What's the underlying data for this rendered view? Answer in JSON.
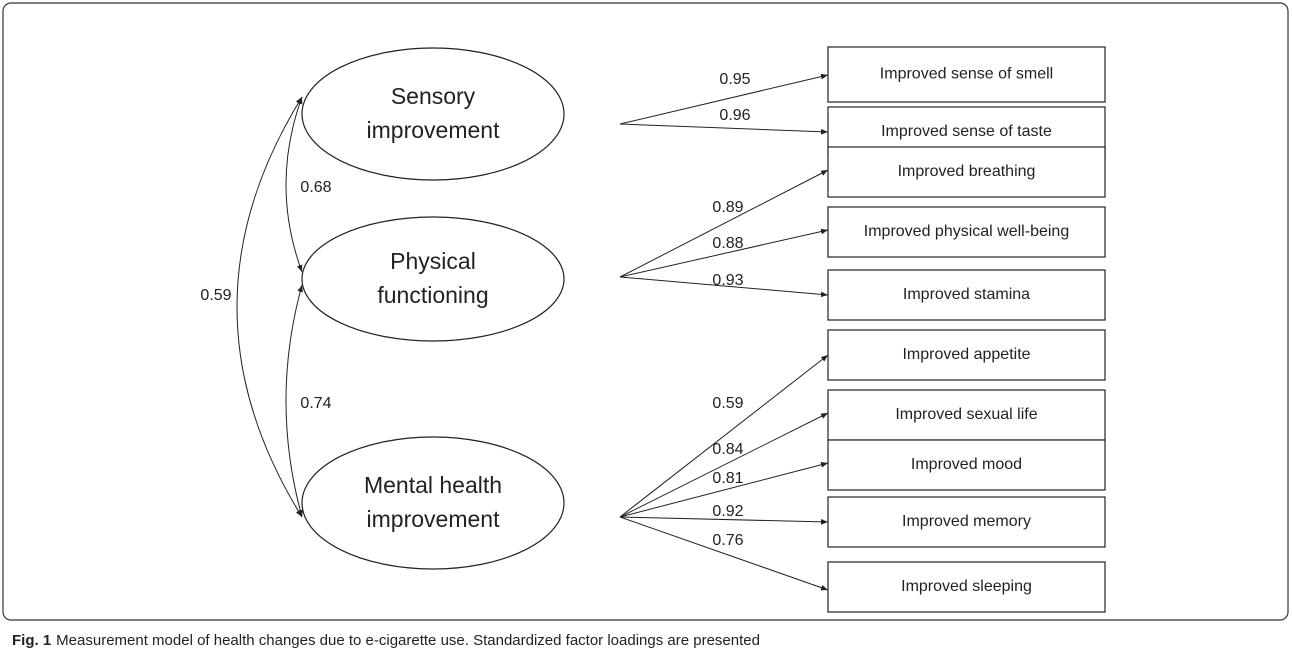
{
  "factors": [
    {
      "label": [
        "Sensory",
        "improvement"
      ]
    },
    {
      "label": [
        "Physical",
        "functioning"
      ]
    },
    {
      "label": [
        "Mental health",
        "improvement"
      ]
    }
  ],
  "indicators": [
    {
      "label": "Improved sense of smell",
      "loading": "0.95"
    },
    {
      "label": "Improved sense of taste",
      "loading": "0.96"
    },
    {
      "label": "Improved breathing",
      "loading": "0.89"
    },
    {
      "label": "Improved physical well-being",
      "loading": "0.88"
    },
    {
      "label": "Improved stamina",
      "loading": "0.93"
    },
    {
      "label": "Improved appetite",
      "loading": "0.59"
    },
    {
      "label": "Improved sexual life",
      "loading": "0.84"
    },
    {
      "label": "Improved mood",
      "loading": "0.81"
    },
    {
      "label": "Improved memory",
      "loading": "0.92"
    },
    {
      "label": "Improved sleeping",
      "loading": "0.76"
    }
  ],
  "correlations": [
    {
      "label": "0.68"
    },
    {
      "label": "0.74"
    },
    {
      "label": "0.59"
    }
  ],
  "caption": {
    "label": "Fig. 1",
    "text": "Measurement model of health changes due to e-cigarette use. Standardized factor loadings are presented"
  }
}
